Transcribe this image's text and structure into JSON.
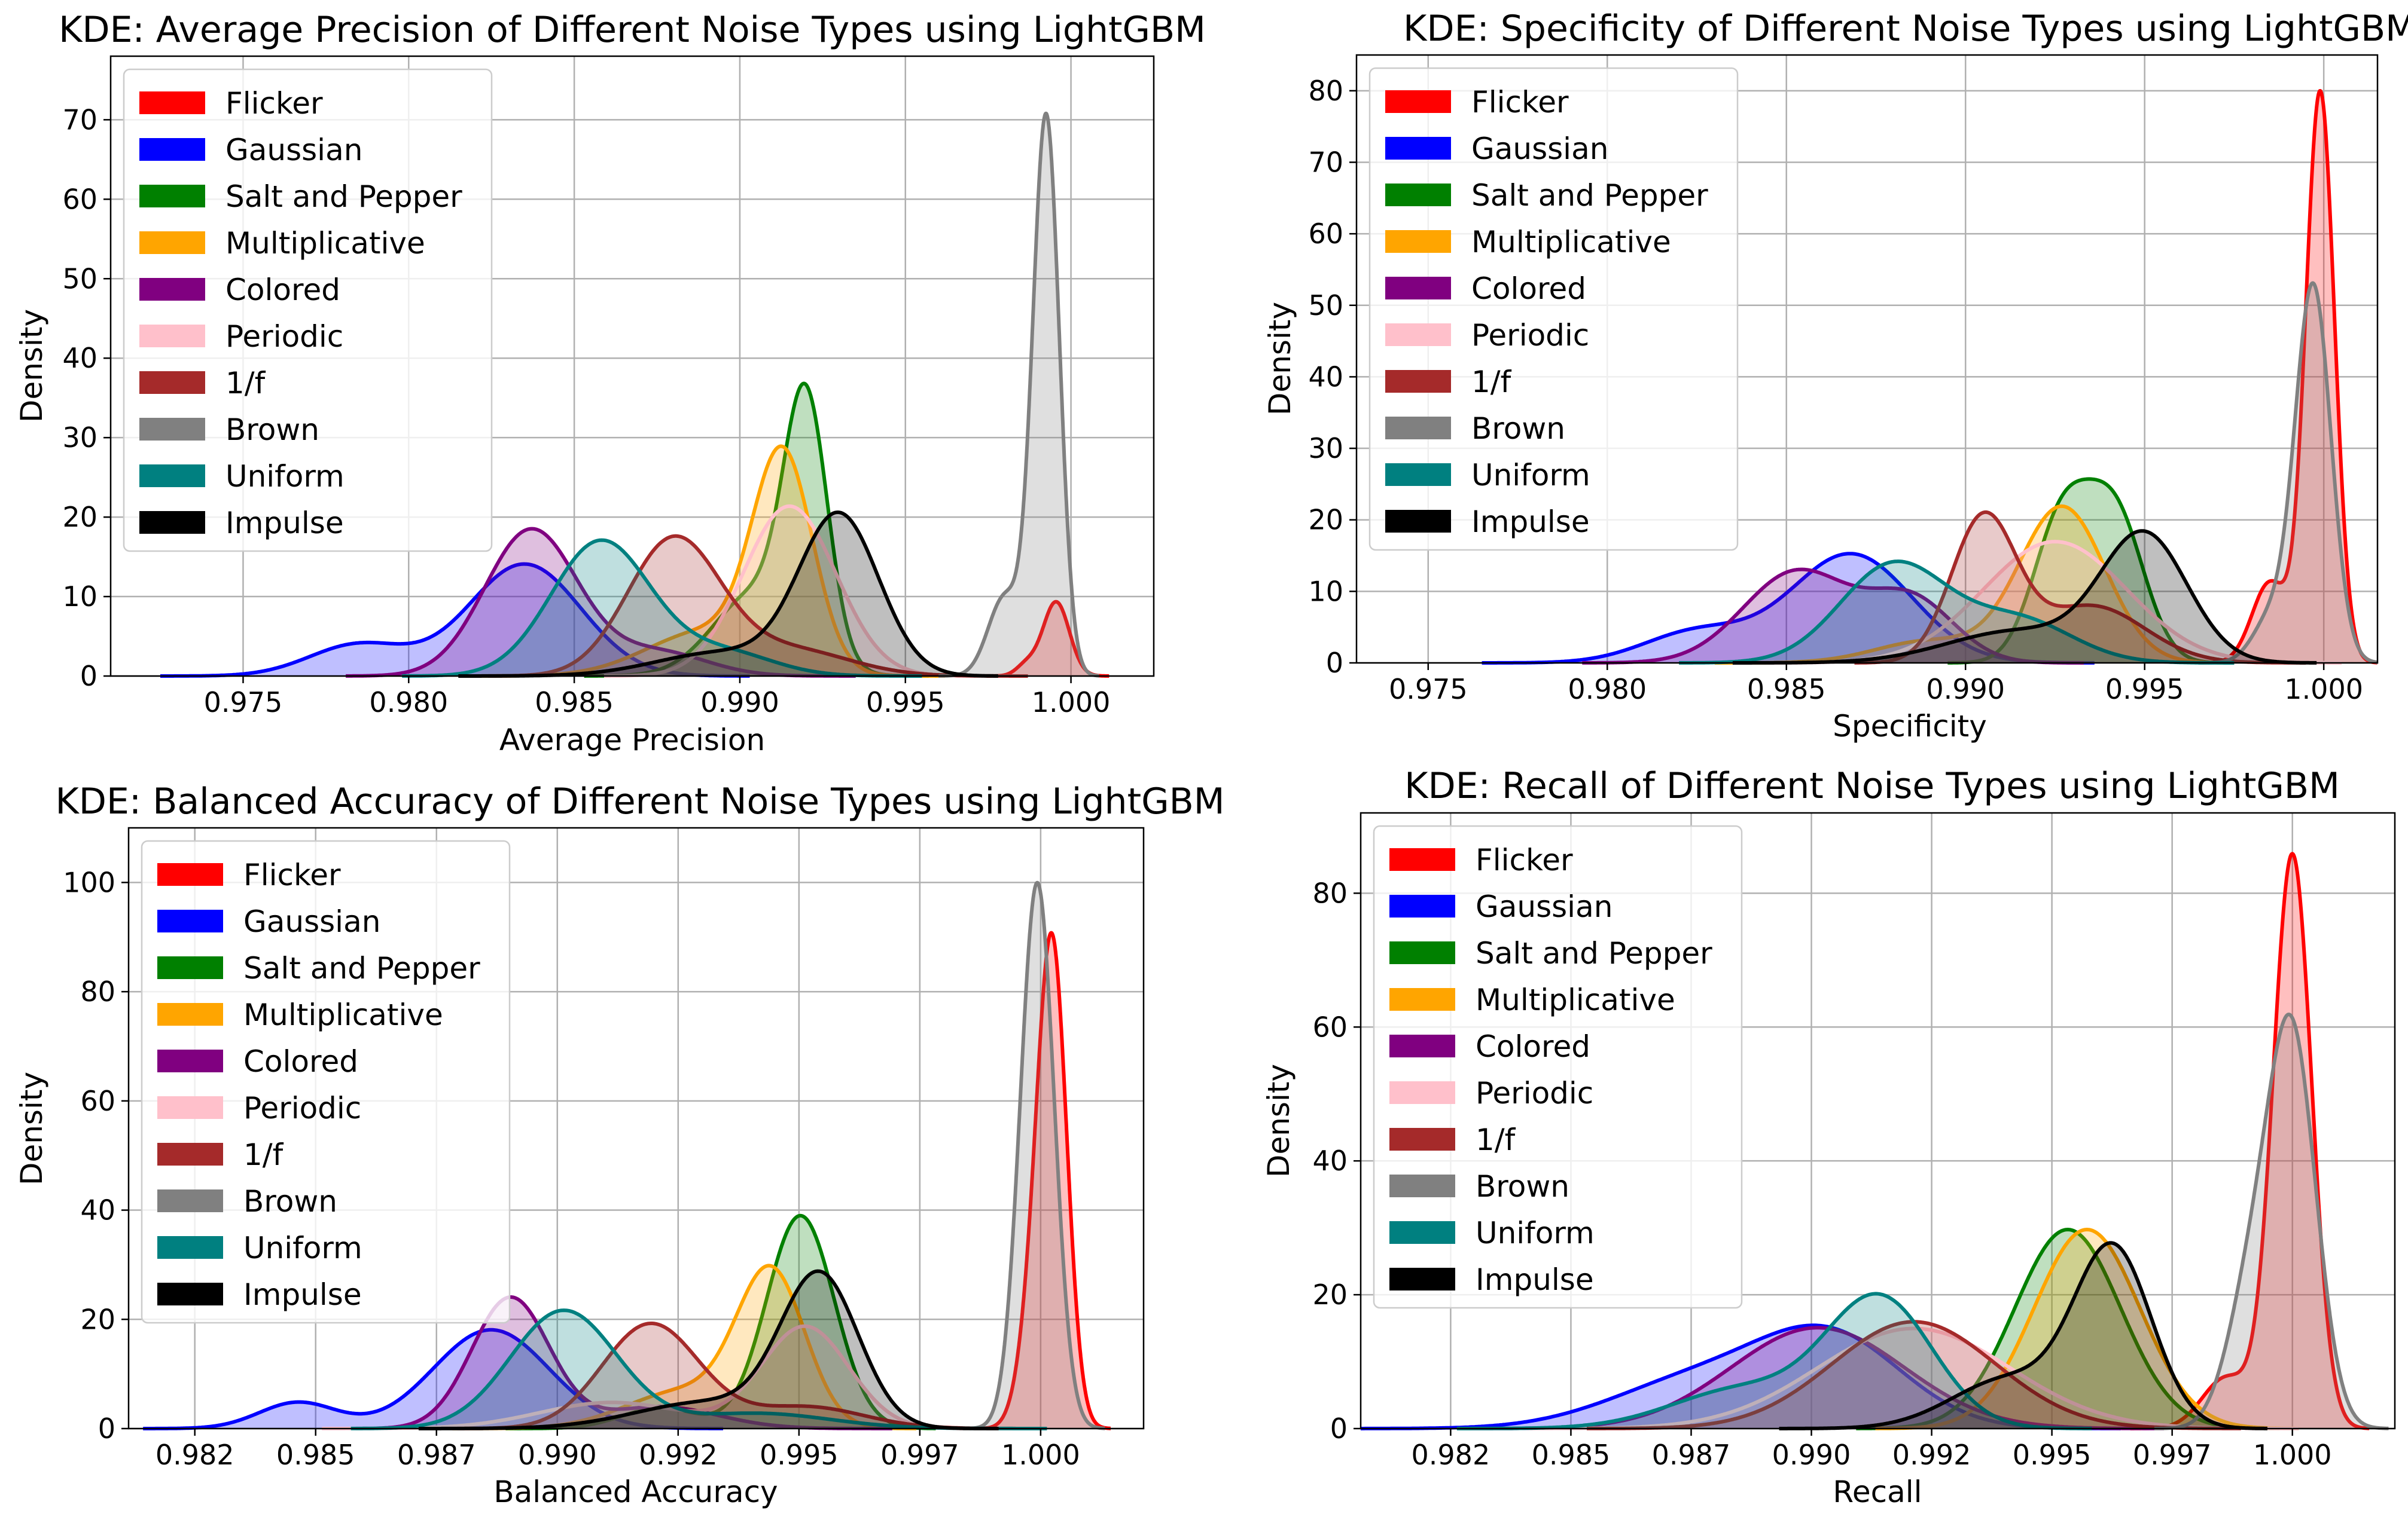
{
  "chart_data": [
    {
      "type": "area",
      "title": "KDE: Average Precision of Different Noise Types using LightGBM",
      "xlabel": "Average Precision",
      "ylabel": "Density",
      "xlim": [
        0.971,
        1.0025
      ],
      "ylim": [
        0,
        78
      ],
      "xticks": [
        0.975,
        0.98,
        0.985,
        0.99,
        0.995,
        1.0
      ],
      "xtick_labels": [
        "0.975",
        "0.980",
        "0.985",
        "0.990",
        "0.995",
        "1.000"
      ],
      "yticks": [
        0,
        10,
        20,
        30,
        40,
        50,
        60,
        70
      ],
      "ytick_labels": [
        "0",
        "10",
        "20",
        "30",
        "40",
        "50",
        "60",
        "70"
      ],
      "grid": true,
      "legend_position": "top-left",
      "series": [
        {
          "name": "Flicker",
          "color": "#ff0000",
          "components": [
            [
              0.99955,
              0.0004,
              0.9
            ],
            [
              0.99865,
              0.0003,
              0.1
            ]
          ],
          "area": 0.0104
        },
        {
          "name": "Gaussian",
          "color": "#0000ff",
          "components": [
            [
              0.9835,
              0.0017,
              0.8
            ],
            [
              0.9785,
              0.0015,
              0.2
            ]
          ],
          "area": 0.075
        },
        {
          "name": "Salt and Pepper",
          "color": "#008000",
          "components": [
            [
              0.992,
              0.00065,
              0.6
            ],
            [
              0.9905,
              0.0013,
              0.4
            ]
          ],
          "area": 0.085
        },
        {
          "name": "Multiplicative",
          "color": "#ffa500",
          "components": [
            [
              0.9913,
              0.0009,
              0.7
            ],
            [
              0.989,
              0.0018,
              0.3
            ]
          ],
          "area": 0.085
        },
        {
          "name": "Colored",
          "color": "#800080",
          "components": [
            [
              0.9837,
              0.0014,
              0.85
            ],
            [
              0.9875,
              0.0015,
              0.15
            ]
          ],
          "area": 0.076
        },
        {
          "name": "Periodic",
          "color": "#ffc0cb",
          "components": [
            [
              0.9915,
              0.0014,
              1.0
            ]
          ],
          "area": 0.075
        },
        {
          "name": "1/f",
          "color": "#a52a2a",
          "components": [
            [
              0.988,
              0.0014,
              0.8
            ],
            [
              0.9915,
              0.0018,
              0.2
            ]
          ],
          "area": 0.075
        },
        {
          "name": "Brown",
          "color": "#808080",
          "components": [
            [
              0.99925,
              0.0004,
              0.85
            ],
            [
              0.998,
              0.0005,
              0.15
            ]
          ],
          "area": 0.083
        },
        {
          "name": "Uniform",
          "color": "#008080",
          "components": [
            [
              0.9858,
              0.0015,
              0.85
            ],
            [
              0.9895,
              0.0015,
              0.15
            ]
          ],
          "area": 0.075
        },
        {
          "name": "Impulse",
          "color": "#000000",
          "components": [
            [
              0.993,
              0.0012,
              0.8
            ],
            [
              0.9895,
              0.002,
              0.2
            ]
          ],
          "area": 0.075
        }
      ]
    },
    {
      "type": "area",
      "title": "KDE: Specificity of Different Noise Types using LightGBM",
      "xlabel": "Specificity",
      "ylabel": "Density",
      "xlim": [
        0.973,
        1.0015
      ],
      "ylim": [
        0,
        85
      ],
      "xticks": [
        0.975,
        0.98,
        0.985,
        0.99,
        0.995,
        1.0
      ],
      "xtick_labels": [
        "0.975",
        "0.980",
        "0.985",
        "0.990",
        "0.995",
        "1.000"
      ],
      "yticks": [
        0,
        10,
        20,
        30,
        40,
        50,
        60,
        70,
        80
      ],
      "ytick_labels": [
        "0",
        "10",
        "20",
        "30",
        "40",
        "50",
        "60",
        "70",
        "80"
      ],
      "grid": true,
      "legend_position": "top-left",
      "series": [
        {
          "name": "Flicker",
          "color": "#ff0000",
          "components": [
            [
              0.9999,
              0.0004,
              0.85
            ],
            [
              0.9985,
              0.0005,
              0.15
            ]
          ],
          "area": 0.0941
        },
        {
          "name": "Gaussian",
          "color": "#0000ff",
          "components": [
            [
              0.9868,
              0.0017,
              0.8
            ],
            [
              0.9825,
              0.0015,
              0.2
            ]
          ],
          "area": 0.081
        },
        {
          "name": "Salt and Pepper",
          "color": "#008000",
          "components": [
            [
              0.9927,
              0.0008,
              0.5
            ],
            [
              0.9942,
              0.0008,
              0.5
            ]
          ],
          "area": 0.08
        },
        {
          "name": "Multiplicative",
          "color": "#ffa500",
          "components": [
            [
              0.9927,
              0.0012,
              0.85
            ],
            [
              0.989,
              0.0015,
              0.15
            ]
          ],
          "area": 0.077
        },
        {
          "name": "Colored",
          "color": "#800080",
          "components": [
            [
              0.9853,
              0.0015,
              0.65
            ],
            [
              0.9885,
              0.0012,
              0.35
            ]
          ],
          "area": 0.074
        },
        {
          "name": "Periodic",
          "color": "#ffc0cb",
          "components": [
            [
              0.9925,
              0.002,
              1.0
            ]
          ],
          "area": 0.085
        },
        {
          "name": "1/f",
          "color": "#a52a2a",
          "components": [
            [
              0.9905,
              0.0009,
              0.6
            ],
            [
              0.9935,
              0.0015,
              0.4
            ]
          ],
          "area": 0.075
        },
        {
          "name": "Brown",
          "color": "#808080",
          "components": [
            [
              0.9997,
              0.0005,
              0.9
            ],
            [
              0.9985,
              0.0005,
              0.1
            ]
          ],
          "area": 0.0735
        },
        {
          "name": "Uniform",
          "color": "#008080",
          "components": [
            [
              0.988,
              0.0015,
              0.7
            ],
            [
              0.9915,
              0.0015,
              0.3
            ]
          ],
          "area": 0.074
        },
        {
          "name": "Impulse",
          "color": "#000000",
          "components": [
            [
              0.995,
              0.0012,
              0.7
            ],
            [
              0.9915,
              0.002,
              0.3
            ]
          ],
          "area": 0.075
        }
      ]
    },
    {
      "type": "area",
      "title": "KDE: Balanced Accuracy of Different Noise Types using LightGBM",
      "xlabel": "Balanced Accuracy",
      "ylabel": "Density",
      "xlim": [
        0.9805,
        1.0015
      ],
      "ylim": [
        0,
        110
      ],
      "xticks": [
        0.98187,
        0.98437,
        0.98687,
        0.98937,
        0.99187,
        0.99437,
        0.99687,
        0.99937
      ],
      "xtick_labels": [
        "0.982",
        "0.985",
        "0.987",
        "0.990",
        "0.992",
        "0.995",
        "0.997",
        "1.000"
      ],
      "yticks": [
        0,
        20,
        40,
        60,
        80,
        100
      ],
      "ytick_labels": [
        "0",
        "20",
        "40",
        "60",
        "80",
        "100"
      ],
      "grid": true,
      "legend_position": "top-left",
      "series": [
        {
          "name": "Flicker",
          "color": "#ff0000",
          "components": [
            [
              0.99962,
              0.0003,
              0.85
            ],
            [
              0.9992,
              0.0003,
              0.15
            ]
          ],
          "area": 0.075
        },
        {
          "name": "Gaussian",
          "color": "#0000ff",
          "components": [
            [
              0.988,
              0.0012,
              0.85
            ],
            [
              0.984,
              0.0008,
              0.15
            ]
          ],
          "area": 0.064
        },
        {
          "name": "Salt and Pepper",
          "color": "#008000",
          "components": [
            [
              0.9944,
              0.0007,
              0.9
            ],
            [
              0.9915,
              0.0008,
              0.1
            ]
          ],
          "area": 0.076
        },
        {
          "name": "Multiplicative",
          "color": "#ffa500",
          "components": [
            [
              0.9938,
              0.0007,
              0.7
            ],
            [
              0.992,
              0.0012,
              0.3
            ]
          ],
          "area": 0.069
        },
        {
          "name": "Colored",
          "color": "#800080",
          "components": [
            [
              0.9884,
              0.0008,
              0.8
            ],
            [
              0.9915,
              0.0012,
              0.2
            ]
          ],
          "area": 0.06
        },
        {
          "name": "Periodic",
          "color": "#ffc0cb",
          "components": [
            [
              0.9945,
              0.0009,
              0.7
            ],
            [
              0.9905,
              0.0015,
              0.3
            ]
          ],
          "area": 0.06
        },
        {
          "name": "1/f",
          "color": "#a52a2a",
          "components": [
            [
              0.9913,
              0.001,
              0.8
            ],
            [
              0.9945,
              0.0012,
              0.2
            ]
          ],
          "area": 0.06
        },
        {
          "name": "Brown",
          "color": "#808080",
          "components": [
            [
              0.9993,
              0.00035,
              1.0
            ]
          ],
          "area": 0.0877
        },
        {
          "name": "Uniform",
          "color": "#008080",
          "components": [
            [
              0.9895,
              0.0011,
              0.85
            ],
            [
              0.9935,
              0.0015,
              0.15
            ]
          ],
          "area": 0.07
        },
        {
          "name": "Impulse",
          "color": "#000000",
          "components": [
            [
              0.9948,
              0.0008,
              0.75
            ],
            [
              0.9925,
              0.0015,
              0.25
            ]
          ],
          "area": 0.073
        }
      ]
    },
    {
      "type": "area",
      "title": "KDE: Recall of Different Noise Types using LightGBM",
      "xlabel": "Recall",
      "ylabel": "Density",
      "xlim": [
        0.98,
        1.0015
      ],
      "ylim": [
        0,
        92
      ],
      "xticks": [
        0.98187,
        0.98437,
        0.98687,
        0.98937,
        0.99187,
        0.99437,
        0.99687,
        0.99937
      ],
      "xtick_labels": [
        "0.982",
        "0.985",
        "0.987",
        "0.990",
        "0.992",
        "0.995",
        "0.997",
        "1.000"
      ],
      "yticks": [
        0,
        20,
        40,
        60,
        80
      ],
      "ytick_labels": [
        "0",
        "20",
        "40",
        "60",
        "80"
      ],
      "grid": true,
      "legend_position": "top-left",
      "series": [
        {
          "name": "Flicker",
          "color": "#ff0000",
          "components": [
            [
              0.99937,
              0.0004,
              0.9
            ],
            [
              0.998,
              0.0005,
              0.1
            ]
          ],
          "area": 0.0955
        },
        {
          "name": "Gaussian",
          "color": "#0000ff",
          "components": [
            [
              0.9898,
              0.0015,
              0.6
            ],
            [
              0.987,
              0.0018,
              0.4
            ]
          ],
          "area": 0.081
        },
        {
          "name": "Salt and Pepper",
          "color": "#008000",
          "components": [
            [
              0.9947,
              0.0011,
              1.0
            ]
          ],
          "area": 0.082
        },
        {
          "name": "Multiplicative",
          "color": "#ffa500",
          "components": [
            [
              0.9951,
              0.0011,
              1.0
            ]
          ],
          "area": 0.082
        },
        {
          "name": "Colored",
          "color": "#800080",
          "components": [
            [
              0.9895,
              0.0018,
              1.0
            ]
          ],
          "area": 0.068
        },
        {
          "name": "Periodic",
          "color": "#ffc0cb",
          "components": [
            [
              0.9915,
              0.002,
              1.0
            ]
          ],
          "area": 0.075
        },
        {
          "name": "1/f",
          "color": "#a52a2a",
          "components": [
            [
              0.9915,
              0.0017,
              1.0
            ]
          ],
          "area": 0.068
        },
        {
          "name": "Brown",
          "color": "#808080",
          "components": [
            [
              0.99937,
              0.0005,
              0.75
            ],
            [
              0.9985,
              0.0005,
              0.25
            ]
          ],
          "area": 0.0955
        },
        {
          "name": "Uniform",
          "color": "#008080",
          "components": [
            [
              0.9908,
              0.0011,
              0.7
            ],
            [
              0.988,
              0.0015,
              0.3
            ]
          ],
          "area": 0.075
        },
        {
          "name": "Impulse",
          "color": "#000000",
          "components": [
            [
              0.99565,
              0.0008,
              0.7
            ],
            [
              0.9935,
              0.0012,
              0.3
            ]
          ],
          "area": 0.075
        }
      ]
    }
  ]
}
